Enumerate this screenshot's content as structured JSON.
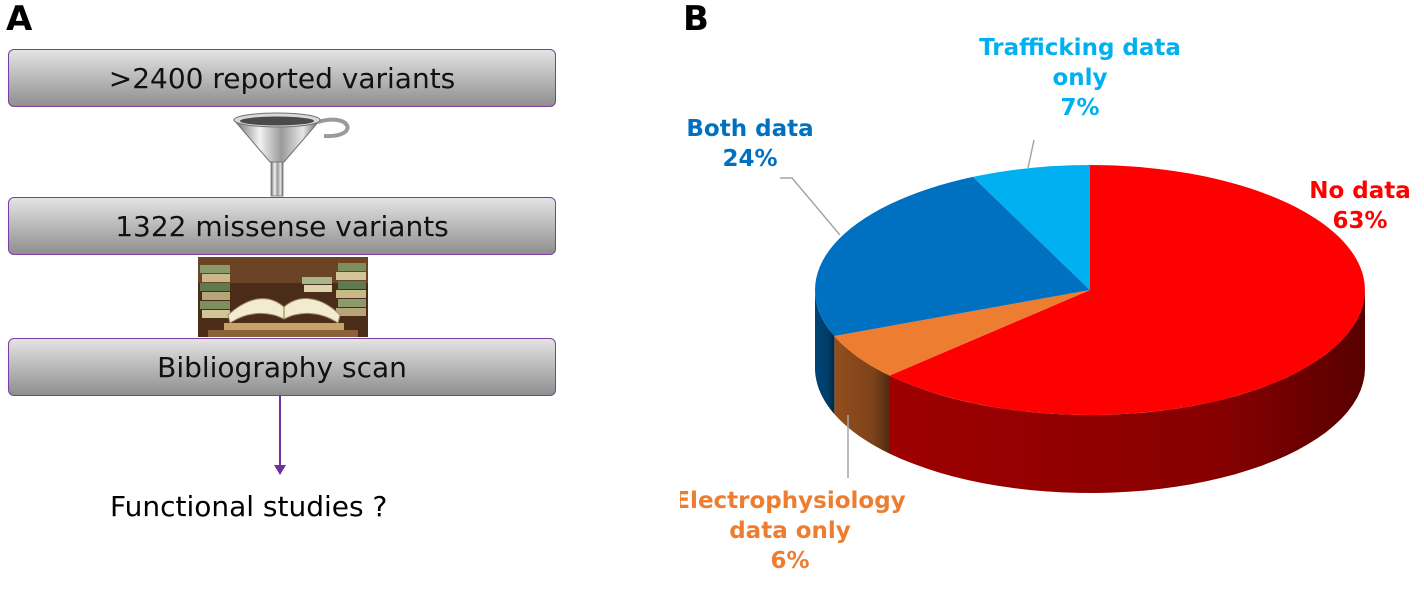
{
  "panels": {
    "a": "A",
    "b": "B"
  },
  "flowchart": {
    "steps": [
      ">2400 reported variants",
      "1322 missense variants",
      "Bibliography scan"
    ],
    "outcome": "Functional studies ?",
    "icons": [
      "funnel-icon",
      "books-icon"
    ],
    "box_border_color": "#7a3fa0"
  },
  "chart_data": {
    "type": "pie",
    "title": "",
    "slices": [
      {
        "name": "No data",
        "label_lines": [
          "No data"
        ],
        "value": 63,
        "value_label": "63%",
        "color": "#ff0000",
        "label_color": "#ff0000"
      },
      {
        "name": "Electrophysiology data only",
        "label_lines": [
          "Electrophysiology",
          "data only"
        ],
        "value": 6,
        "value_label": "6%",
        "color": "#ed7d31",
        "label_color": "#ed7d31"
      },
      {
        "name": "Both data",
        "label_lines": [
          "Both data"
        ],
        "value": 24,
        "value_label": "24%",
        "color": "#0070c0",
        "label_color": "#0070c0"
      },
      {
        "name": "Trafficking data only",
        "label_lines": [
          "Trafficking data",
          "only"
        ],
        "value": 7,
        "value_label": "7%",
        "color": "#00b0f0",
        "label_color": "#00b0f0"
      }
    ],
    "start": "12 o'clock",
    "direction": "clockwise",
    "style": "3d"
  }
}
